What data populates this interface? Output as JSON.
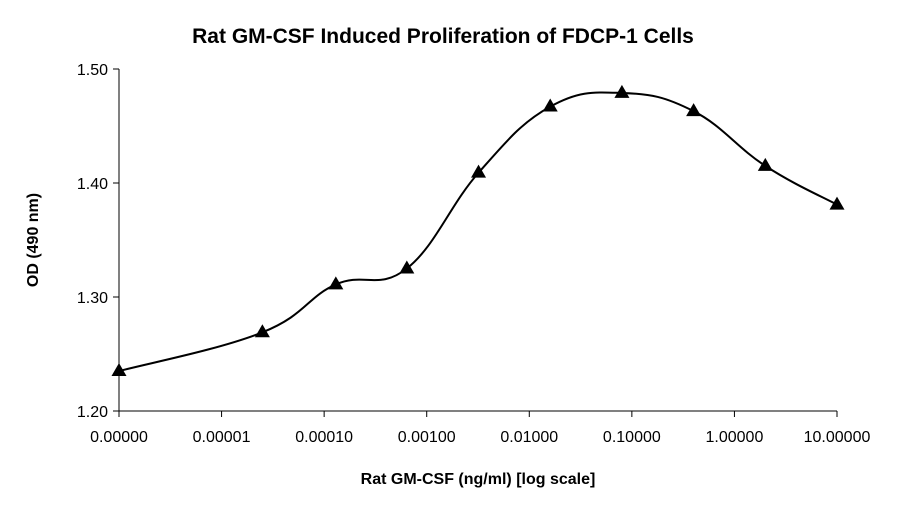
{
  "chart_data": {
    "type": "line",
    "title": "Rat GM-CSF Induced Proliferation of FDCP-1 Cells",
    "xlabel": "Rat GM-CSF (ng/ml) [log scale]",
    "ylabel": "OD (490 nm)",
    "x_scale": "log",
    "x_ticks": [
      "0.00000",
      "0.00001",
      "0.00010",
      "0.00100",
      "0.01000",
      "0.10000",
      "1.00000",
      "10.00000"
    ],
    "y_ticks": [
      "1.20",
      "1.30",
      "1.40",
      "1.50"
    ],
    "ylim": [
      1.2,
      1.5
    ],
    "grid": false,
    "smooth": true,
    "marker": "triangle",
    "series": [
      {
        "x": [
          1e-06,
          2.5e-05,
          0.00013,
          0.00064,
          0.0032,
          0.016,
          0.08,
          0.4,
          2,
          10
        ],
        "y": [
          1.235,
          1.269,
          1.311,
          1.325,
          1.409,
          1.467,
          1.479,
          1.463,
          1.415,
          1.381
        ]
      }
    ]
  }
}
